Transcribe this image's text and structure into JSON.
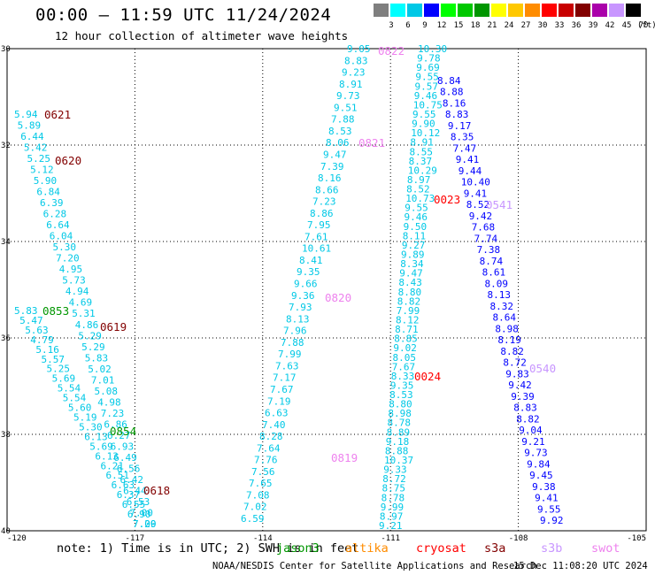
{
  "title": "00:00 — 11:59 UTC 11/24/2024",
  "subtitle": "12 hour collection of altimeter wave heights",
  "colorbar": {
    "unit": "(ft)",
    "items": [
      {
        "label": "3",
        "color": "#7f7f7f"
      },
      {
        "label": "6",
        "color": "#00ffff"
      },
      {
        "label": "9",
        "color": "#00c8e6"
      },
      {
        "label": "12",
        "color": "#0000ff"
      },
      {
        "label": "15",
        "color": "#00ff00"
      },
      {
        "label": "18",
        "color": "#00c800"
      },
      {
        "label": "21",
        "color": "#009600"
      },
      {
        "label": "24",
        "color": "#ffff00"
      },
      {
        "label": "27",
        "color": "#ffc800"
      },
      {
        "label": "30",
        "color": "#ff8c00"
      },
      {
        "label": "33",
        "color": "#ff0000"
      },
      {
        "label": "36",
        "color": "#c80000"
      },
      {
        "label": "39",
        "color": "#820000"
      },
      {
        "label": "42",
        "color": "#aa00aa"
      },
      {
        "label": "45",
        "color": "#c896ff"
      },
      {
        "label": "70",
        "color": "#000000"
      }
    ]
  },
  "map": {
    "lon_ticks": [
      "-120",
      "-117",
      "-114",
      "-111",
      "-108",
      "-105"
    ],
    "lat_ticks": [
      "30",
      "32",
      "34",
      "36",
      "38",
      "40"
    ],
    "lon_range": [
      -120,
      -105
    ],
    "lat_range": [
      30,
      40
    ],
    "grid": true
  },
  "tracks": [
    {
      "id": "0621",
      "color": "#00c8e6",
      "label_color": "#820000",
      "label": "0621",
      "values": [
        "5.94",
        "5.89",
        "6.44",
        "5.42",
        "5.25",
        "5.12",
        "5.90",
        "6.84",
        "6.39",
        "6.28",
        "6.64",
        "6.04",
        "5.30",
        "7.20",
        "4.95",
        "5.73",
        "4.94",
        "4.69",
        "5.31",
        "4.86",
        "5.29",
        "5.29",
        "5.83",
        "5.02",
        "7.01",
        "5.08",
        "4.98",
        "7.23",
        "6.86",
        "6.27",
        "6.93",
        "6.49",
        "6.56",
        "6.42",
        "6.44",
        "6.53",
        "7.00",
        "7.09"
      ]
    },
    {
      "id": "0853",
      "color": "#00c8e6",
      "label_color": "#009600",
      "label": "0853",
      "values": [
        "5.83",
        "5.47",
        "5.63",
        "4.79",
        "5.16",
        "5.57",
        "5.25",
        "5.69",
        "5.54",
        "5.54",
        "5.60",
        "5.19",
        "5.30",
        "6.13",
        "5.69",
        "6.13",
        "6.21",
        "6.51",
        "6.63",
        "6.37",
        "6.55",
        "6.90",
        "7.20"
      ]
    },
    {
      "id": "0819",
      "color": "#00c8e6",
      "label_color": "#ee82ee",
      "label": "0819",
      "values": [
        "9.05",
        "8.83",
        "9.23",
        "8.91",
        "9.73",
        "9.51",
        "7.88",
        "8.53",
        "8.06",
        "9.47",
        "7.39",
        "8.16",
        "8.66",
        "7.23",
        "8.86",
        "7.95",
        "7.61",
        "10.61",
        "8.41",
        "9.35",
        "9.66",
        "9.36",
        "7.93",
        "8.13",
        "7.96",
        "7.88",
        "7.99",
        "7.63",
        "7.17",
        "7.67",
        "7.19",
        "6.63",
        "7.40",
        "8.28",
        "7.64",
        "7.76",
        "7.56",
        "7.65",
        "7.08",
        "7.02",
        "6.59"
      ]
    },
    {
      "id": "0822",
      "color": "#00c8e6",
      "label_color": "#ee82ee",
      "label": "0822",
      "values": [
        "10.30",
        "9.78",
        "9.69",
        "9.55",
        "9.57",
        "9.46",
        "10.75",
        "9.55",
        "9.90",
        "10.12",
        "8.91",
        "8.55",
        "8.37",
        "10.29",
        "8.97",
        "8.52",
        "10.73",
        "9.55",
        "9.46",
        "9.50",
        "8.11",
        "9.27",
        "9.89",
        "8.34",
        "9.47",
        "8.43",
        "8.80",
        "8.82",
        "7.99",
        "8.12",
        "8.71",
        "8.85",
        "9.02",
        "8.05",
        "7.67",
        "8.33",
        "9.35",
        "8.53",
        "8.80",
        "8.98",
        "8.78",
        "8.89",
        "9.18",
        "8.88",
        "10.37",
        "9.33",
        "8.72",
        "8.75",
        "8.78",
        "9.99",
        "8.97",
        "9.21"
      ]
    },
    {
      "id": "0540",
      "color": "#0000ff",
      "label_color": "#c896ff",
      "label": "0540",
      "values": [
        "8.84",
        "8.88",
        "8.16",
        "8.83",
        "9.17",
        "8.35",
        "7.47",
        "9.41",
        "9.44",
        "10.40",
        "9.41",
        "8.52",
        "9.42",
        "7.68",
        "7.74",
        "7.38",
        "8.74",
        "8.61",
        "8.09",
        "8.13",
        "8.32",
        "8.64",
        "8.98",
        "8.19",
        "8.82",
        "8.72",
        "9.83",
        "9.42",
        "9.39",
        "8.83",
        "8.82",
        "9.04",
        "9.21",
        "9.73",
        "9.84",
        "9.45",
        "9.38",
        "9.41",
        "9.55",
        "9.92"
      ]
    }
  ],
  "track_labels": {
    "t0821": "0821",
    "t0820": "0820",
    "t0023": "0023",
    "t0541": "0541",
    "t0620": "0620",
    "t0619": "0619",
    "t0854": "0854",
    "t0618": "0618",
    "t0024": "0024"
  },
  "footer": {
    "note": "note: 1) Time is in UTC; 2) SWH is in feet",
    "satellites": [
      {
        "name": "jason3",
        "color": "#009600"
      },
      {
        "name": "altika",
        "color": "#ff8c00"
      },
      {
        "name": "cryosat",
        "color": "#ff0000"
      },
      {
        "name": "s3a",
        "color": "#820000"
      },
      {
        "name": "s3b",
        "color": "#c896ff"
      },
      {
        "name": "swot",
        "color": "#ee82ee"
      }
    ],
    "credit": "NOAA/NESDIS Center for Satellite Applications and Research",
    "date": "15 Dec 11:08:20 UTC 2024"
  }
}
